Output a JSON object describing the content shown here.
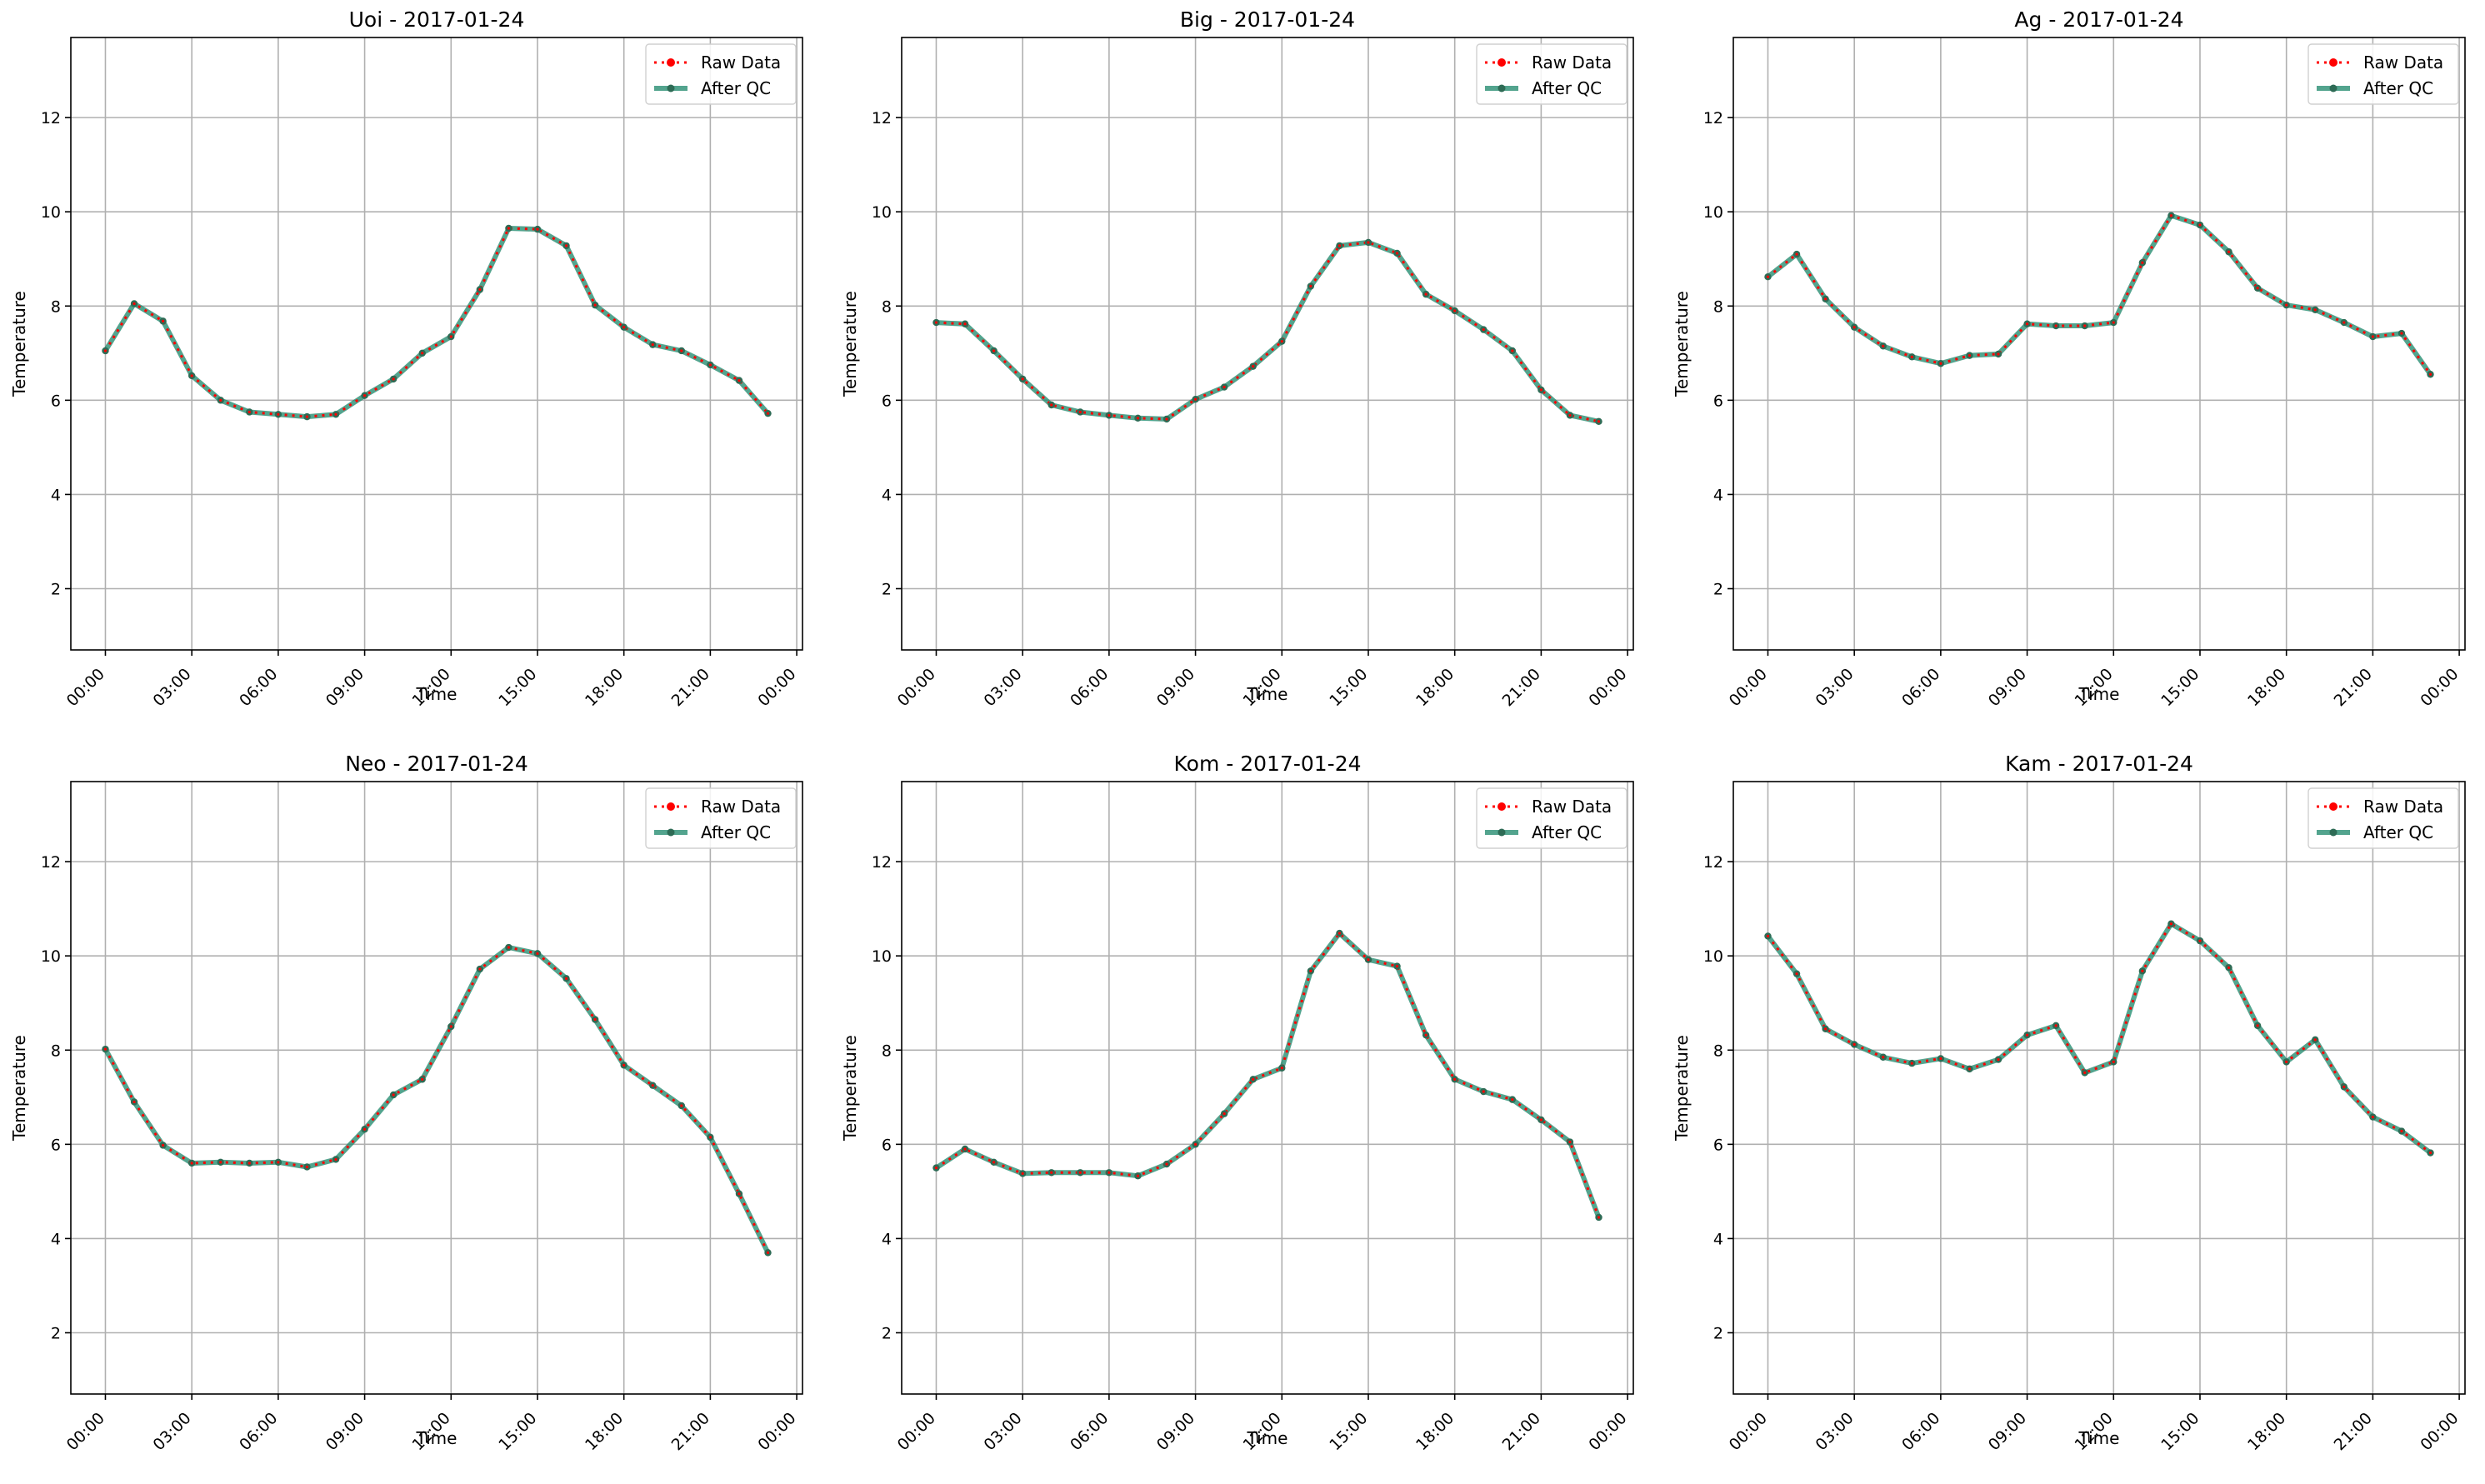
{
  "legend": {
    "raw": "Raw Data",
    "qc": "After QC"
  },
  "colors": {
    "raw": "#ff0000",
    "qc": "#238b6e",
    "qc_marker": "#2e6b55",
    "grid": "#b0b0b0"
  },
  "chart_data": [
    {
      "type": "line",
      "title": "Uoi - 2017-01-24",
      "xlabel": "Time",
      "ylabel": "Temperature",
      "x_ticks": [
        "00:00",
        "03:00",
        "06:00",
        "09:00",
        "12:00",
        "15:00",
        "18:00",
        "21:00",
        "00:00"
      ],
      "y_ticks": [
        2,
        4,
        6,
        8,
        10,
        12
      ],
      "ylim": [
        0.7,
        13.7
      ],
      "xlim_hours": [
        -1.2,
        24.2
      ],
      "grid": true,
      "legend_position": "top-right",
      "series": [
        {
          "name": "Raw Data",
          "x_hours": [
            0,
            1,
            2,
            3,
            4,
            5,
            6,
            7,
            8,
            9,
            10,
            11,
            12,
            13,
            14,
            15,
            16,
            17,
            18,
            19,
            20,
            21,
            22,
            23
          ],
          "values": [
            7.05,
            8.05,
            7.68,
            6.52,
            6.0,
            5.75,
            5.7,
            5.65,
            5.7,
            6.1,
            6.45,
            7.0,
            7.35,
            8.35,
            9.65,
            9.63,
            9.28,
            8.02,
            7.55,
            7.18,
            7.05,
            6.75,
            6.42,
            5.72
          ]
        },
        {
          "name": "After QC",
          "x_hours": [
            0,
            1,
            2,
            3,
            4,
            5,
            6,
            7,
            8,
            9,
            10,
            11,
            12,
            13,
            14,
            15,
            16,
            17,
            18,
            19,
            20,
            21,
            22,
            23
          ],
          "values": [
            7.05,
            8.05,
            7.68,
            6.52,
            6.0,
            5.75,
            5.7,
            5.65,
            5.7,
            6.1,
            6.45,
            7.0,
            7.35,
            8.35,
            9.65,
            9.63,
            9.28,
            8.02,
            7.55,
            7.18,
            7.05,
            6.75,
            6.42,
            5.72
          ]
        }
      ]
    },
    {
      "type": "line",
      "title": "Big - 2017-01-24",
      "xlabel": "Time",
      "ylabel": "Temperature",
      "x_ticks": [
        "00:00",
        "03:00",
        "06:00",
        "09:00",
        "12:00",
        "15:00",
        "18:00",
        "21:00",
        "00:00"
      ],
      "y_ticks": [
        2,
        4,
        6,
        8,
        10,
        12
      ],
      "ylim": [
        0.7,
        13.7
      ],
      "xlim_hours": [
        -1.2,
        24.2
      ],
      "grid": true,
      "legend_position": "top-right",
      "series": [
        {
          "name": "Raw Data",
          "x_hours": [
            0,
            1,
            2,
            3,
            4,
            5,
            6,
            7,
            8,
            9,
            10,
            11,
            12,
            13,
            14,
            15,
            16,
            17,
            18,
            19,
            20,
            21,
            22,
            23
          ],
          "values": [
            7.65,
            7.62,
            7.05,
            6.45,
            5.9,
            5.75,
            5.68,
            5.62,
            5.6,
            6.02,
            6.28,
            6.72,
            7.25,
            8.42,
            9.28,
            9.35,
            9.12,
            8.25,
            7.9,
            7.5,
            7.05,
            6.22,
            5.68,
            5.55
          ]
        },
        {
          "name": "After QC",
          "x_hours": [
            0,
            1,
            2,
            3,
            4,
            5,
            6,
            7,
            8,
            9,
            10,
            11,
            12,
            13,
            14,
            15,
            16,
            17,
            18,
            19,
            20,
            21,
            22,
            23
          ],
          "values": [
            7.65,
            7.62,
            7.05,
            6.45,
            5.9,
            5.75,
            5.68,
            5.62,
            5.6,
            6.02,
            6.28,
            6.72,
            7.25,
            8.42,
            9.28,
            9.35,
            9.12,
            8.25,
            7.9,
            7.5,
            7.05,
            6.22,
            5.68,
            5.55
          ]
        }
      ]
    },
    {
      "type": "line",
      "title": "Ag - 2017-01-24",
      "xlabel": "Time",
      "ylabel": "Temperature",
      "x_ticks": [
        "00:00",
        "03:00",
        "06:00",
        "09:00",
        "12:00",
        "15:00",
        "18:00",
        "21:00",
        "00:00"
      ],
      "y_ticks": [
        2,
        4,
        6,
        8,
        10,
        12
      ],
      "ylim": [
        0.7,
        13.7
      ],
      "xlim_hours": [
        -1.2,
        24.2
      ],
      "grid": true,
      "legend_position": "top-right",
      "series": [
        {
          "name": "Raw Data",
          "x_hours": [
            0,
            1,
            2,
            3,
            4,
            5,
            6,
            7,
            8,
            9,
            10,
            11,
            12,
            13,
            14,
            15,
            16,
            17,
            18,
            19,
            20,
            21,
            22,
            23
          ],
          "values": [
            8.62,
            9.1,
            8.15,
            7.55,
            7.15,
            6.92,
            6.78,
            6.95,
            6.98,
            7.62,
            7.58,
            7.58,
            7.65,
            8.92,
            9.92,
            9.72,
            9.15,
            8.38,
            8.02,
            7.92,
            7.65,
            7.35,
            7.42,
            6.55
          ]
        },
        {
          "name": "After QC",
          "x_hours": [
            0,
            1,
            2,
            3,
            4,
            5,
            6,
            7,
            8,
            9,
            10,
            11,
            12,
            13,
            14,
            15,
            16,
            17,
            18,
            19,
            20,
            21,
            22,
            23
          ],
          "values": [
            8.62,
            9.1,
            8.15,
            7.55,
            7.15,
            6.92,
            6.78,
            6.95,
            6.98,
            7.62,
            7.58,
            7.58,
            7.65,
            8.92,
            9.92,
            9.72,
            9.15,
            8.38,
            8.02,
            7.92,
            7.65,
            7.35,
            7.42,
            6.55
          ]
        }
      ]
    },
    {
      "type": "line",
      "title": "Neo - 2017-01-24",
      "xlabel": "Time",
      "ylabel": "Temperature",
      "x_ticks": [
        "00:00",
        "03:00",
        "06:00",
        "09:00",
        "12:00",
        "15:00",
        "18:00",
        "21:00",
        "00:00"
      ],
      "y_ticks": [
        2,
        4,
        6,
        8,
        10,
        12
      ],
      "ylim": [
        0.7,
        13.7
      ],
      "xlim_hours": [
        -1.2,
        24.2
      ],
      "grid": true,
      "legend_position": "top-right",
      "series": [
        {
          "name": "Raw Data",
          "x_hours": [
            0,
            1,
            2,
            3,
            4,
            5,
            6,
            7,
            8,
            9,
            10,
            11,
            12,
            13,
            14,
            15,
            16,
            17,
            18,
            19,
            20,
            21,
            22,
            23
          ],
          "values": [
            8.02,
            6.9,
            5.98,
            5.6,
            5.62,
            5.6,
            5.62,
            5.52,
            5.68,
            6.32,
            7.05,
            7.38,
            8.5,
            9.72,
            10.18,
            10.05,
            9.52,
            8.65,
            7.68,
            7.25,
            6.82,
            6.15,
            4.95,
            3.7
          ]
        },
        {
          "name": "After QC",
          "x_hours": [
            0,
            1,
            2,
            3,
            4,
            5,
            6,
            7,
            8,
            9,
            10,
            11,
            12,
            13,
            14,
            15,
            16,
            17,
            18,
            19,
            20,
            21,
            22,
            23
          ],
          "values": [
            8.02,
            6.9,
            5.98,
            5.6,
            5.62,
            5.6,
            5.62,
            5.52,
            5.68,
            6.32,
            7.05,
            7.38,
            8.5,
            9.72,
            10.18,
            10.05,
            9.52,
            8.65,
            7.68,
            7.25,
            6.82,
            6.15,
            4.95,
            3.7
          ]
        }
      ]
    },
    {
      "type": "line",
      "title": "Kom - 2017-01-24",
      "xlabel": "Time",
      "ylabel": "Temperature",
      "x_ticks": [
        "00:00",
        "03:00",
        "06:00",
        "09:00",
        "12:00",
        "15:00",
        "18:00",
        "21:00",
        "00:00"
      ],
      "y_ticks": [
        2,
        4,
        6,
        8,
        10,
        12
      ],
      "ylim": [
        0.7,
        13.7
      ],
      "xlim_hours": [
        -1.2,
        24.2
      ],
      "grid": true,
      "legend_position": "top-right",
      "series": [
        {
          "name": "Raw Data",
          "x_hours": [
            0,
            1,
            2,
            3,
            4,
            5,
            6,
            7,
            8,
            9,
            10,
            11,
            12,
            13,
            14,
            15,
            16,
            17,
            18,
            19,
            20,
            21,
            22,
            23
          ],
          "values": [
            5.5,
            5.9,
            5.62,
            5.38,
            5.4,
            5.4,
            5.4,
            5.33,
            5.58,
            6.0,
            6.65,
            7.38,
            7.62,
            9.68,
            10.48,
            9.92,
            9.78,
            8.32,
            7.38,
            7.12,
            6.95,
            6.52,
            6.05,
            4.45
          ]
        },
        {
          "name": "After QC",
          "x_hours": [
            0,
            1,
            2,
            3,
            4,
            5,
            6,
            7,
            8,
            9,
            10,
            11,
            12,
            13,
            14,
            15,
            16,
            17,
            18,
            19,
            20,
            21,
            22,
            23
          ],
          "values": [
            5.5,
            5.9,
            5.62,
            5.38,
            5.4,
            5.4,
            5.4,
            5.33,
            5.58,
            6.0,
            6.65,
            7.38,
            7.62,
            9.68,
            10.48,
            9.92,
            9.78,
            8.32,
            7.38,
            7.12,
            6.95,
            6.52,
            6.05,
            4.45
          ]
        }
      ]
    },
    {
      "type": "line",
      "title": "Kam - 2017-01-24",
      "xlabel": "Time",
      "ylabel": "Temperature",
      "x_ticks": [
        "00:00",
        "03:00",
        "06:00",
        "09:00",
        "12:00",
        "15:00",
        "18:00",
        "21:00",
        "00:00"
      ],
      "y_ticks": [
        2,
        4,
        6,
        8,
        10,
        12
      ],
      "ylim": [
        0.7,
        13.7
      ],
      "xlim_hours": [
        -1.2,
        24.2
      ],
      "grid": true,
      "legend_position": "top-right",
      "series": [
        {
          "name": "Raw Data",
          "x_hours": [
            0,
            1,
            2,
            3,
            4,
            5,
            6,
            7,
            8,
            9,
            10,
            11,
            12,
            13,
            14,
            15,
            16,
            17,
            18,
            19,
            20,
            21,
            22,
            23
          ],
          "values": [
            10.42,
            9.62,
            8.45,
            8.12,
            7.85,
            7.72,
            7.82,
            7.6,
            7.8,
            8.32,
            8.52,
            7.52,
            7.75,
            9.68,
            10.68,
            10.32,
            9.75,
            8.52,
            7.75,
            8.22,
            7.22,
            6.58,
            6.28,
            5.82
          ]
        },
        {
          "name": "After QC",
          "x_hours": [
            0,
            1,
            2,
            3,
            4,
            5,
            6,
            7,
            8,
            9,
            10,
            11,
            12,
            13,
            14,
            15,
            16,
            17,
            18,
            19,
            20,
            21,
            22,
            23
          ],
          "values": [
            10.42,
            9.62,
            8.45,
            8.12,
            7.85,
            7.72,
            7.82,
            7.6,
            7.8,
            8.32,
            8.52,
            7.52,
            7.75,
            9.68,
            10.68,
            10.32,
            9.75,
            8.52,
            7.75,
            8.22,
            7.22,
            6.58,
            6.28,
            5.82
          ]
        }
      ]
    }
  ]
}
